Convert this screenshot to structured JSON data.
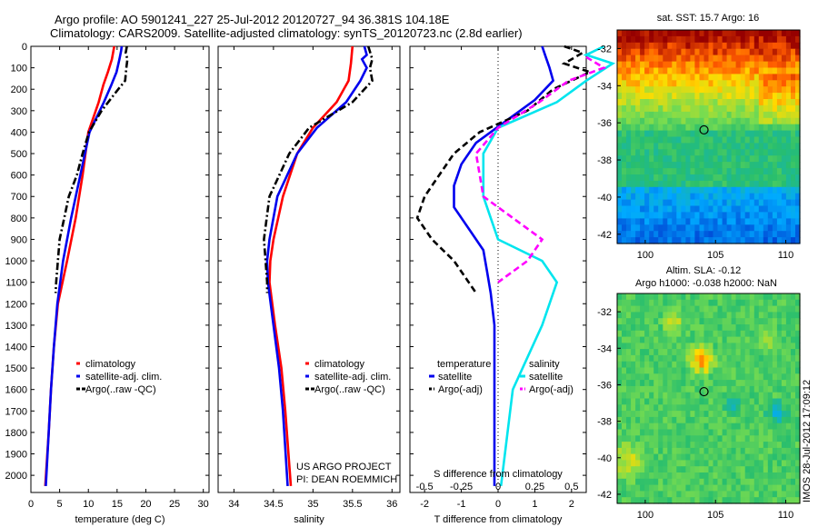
{
  "header": {
    "title_line1": "Argo profile: AO 5901241_227 25-Jul-2012 20120727_94 36.381S 104.18E",
    "title_line2": "Climatology: CARS2009. Satellite-adjusted climatology: synTS_20120723.nc (2.8d earlier)"
  },
  "colors": {
    "climatology": "#ff0000",
    "satellite": "#0000ee",
    "argo": "#000000",
    "salinity_satellite": "#00e5ee",
    "salinity_argo": "#ff00ff"
  },
  "project": {
    "line1": "US ARGO PROJECT",
    "line2": "PI: DEAN ROEMMICH"
  },
  "watermark": "IMOS 28-Jul-2012 17:09:12",
  "maps": {
    "sst_title": "sat. SST: 15.7 Argo: 16",
    "sla_title1": "Altim. SLA: -0.12",
    "sla_title2": "Argo h1000: -0.038 h2000: NaN"
  },
  "chart_data": [
    {
      "type": "line",
      "id": "temperature",
      "xlabel": "temperature (deg C)",
      "ylabel": "",
      "xlim": [
        0,
        31
      ],
      "ylim": [
        2080,
        0
      ],
      "xticks": [
        0,
        5,
        10,
        15,
        20,
        25,
        30
      ],
      "yticks": [
        0,
        100,
        200,
        300,
        400,
        500,
        600,
        700,
        800,
        900,
        1000,
        1100,
        1200,
        1300,
        1400,
        1500,
        1600,
        1700,
        1800,
        1900,
        2000
      ],
      "legend": [
        "climatology",
        "satellite-adj. clim.",
        "Argo(..raw -QC)"
      ],
      "legend_position": "lower-center",
      "series": [
        {
          "name": "climatology",
          "color": "#ff0000",
          "style": "solid",
          "depth": [
            0,
            60,
            120,
            180,
            260,
            400,
            600,
            800,
            1000,
            1200,
            1400,
            1600,
            1800,
            2050
          ],
          "value": [
            14.5,
            14.1,
            13.4,
            12.6,
            11.8,
            10.0,
            9.0,
            7.8,
            6.3,
            4.7,
            4.0,
            3.5,
            3.1,
            2.5
          ]
        },
        {
          "name": "satellite-adj. clim.",
          "color": "#0000ee",
          "style": "solid",
          "depth": [
            0,
            20,
            60,
            120,
            180,
            260,
            400,
            600,
            800,
            1000,
            1200,
            1400,
            1600,
            1800,
            2050
          ],
          "value": [
            15.8,
            15.7,
            15.4,
            14.9,
            14.0,
            12.7,
            10.2,
            8.6,
            7.0,
            5.6,
            4.6,
            4.0,
            3.5,
            3.1,
            2.6
          ]
        },
        {
          "name": "Argo(..raw -QC)",
          "color": "#000000",
          "style": "dashdot",
          "depth": [
            0,
            30,
            60,
            100,
            160,
            200,
            300,
            400,
            500,
            600,
            700,
            800,
            900,
            1000,
            1100,
            1150
          ],
          "value": [
            16.7,
            16.5,
            16.8,
            16.6,
            16.4,
            15.2,
            12.3,
            10.1,
            9.0,
            8.0,
            6.6,
            5.8,
            5.0,
            4.7,
            4.4,
            4.3
          ]
        }
      ]
    },
    {
      "type": "line",
      "id": "salinity",
      "xlabel": "salinity",
      "ylabel": "",
      "xlim": [
        33.8,
        36.1
      ],
      "ylim": [
        2080,
        0
      ],
      "xticks": [
        34,
        34.5,
        35,
        35.5,
        36
      ],
      "legend": [
        "climatology",
        "satellite-adj. clim.",
        "Argo(..raw -QC)"
      ],
      "legend_position": "lower-right",
      "series": [
        {
          "name": "climatology",
          "color": "#ff0000",
          "style": "solid",
          "depth": [
            0,
            80,
            160,
            260,
            380,
            500,
            700,
            900,
            1000,
            1100,
            1300,
            1500,
            1700,
            2050
          ],
          "value": [
            35.5,
            35.48,
            35.45,
            35.3,
            35.0,
            34.8,
            34.62,
            34.5,
            34.46,
            34.45,
            34.52,
            34.6,
            34.65,
            34.72
          ]
        },
        {
          "name": "satellite-adj. clim.",
          "color": "#0000ee",
          "style": "solid",
          "depth": [
            0,
            40,
            60,
            100,
            160,
            260,
            380,
            500,
            700,
            900,
            1000,
            1100,
            1300,
            1500,
            1700,
            2050
          ],
          "value": [
            35.65,
            35.68,
            35.62,
            35.68,
            35.6,
            35.42,
            35.05,
            34.8,
            34.55,
            34.45,
            34.42,
            34.43,
            34.5,
            34.57,
            34.62,
            34.68
          ]
        },
        {
          "name": "Argo(..raw -QC)",
          "color": "#000000",
          "style": "dashdot",
          "depth": [
            0,
            60,
            100,
            160,
            260,
            380,
            500,
            700,
            900,
            1000,
            1100,
            1150
          ],
          "value": [
            35.7,
            35.75,
            35.72,
            35.75,
            35.5,
            34.95,
            34.7,
            34.45,
            34.38,
            34.4,
            34.42,
            34.42
          ]
        }
      ]
    },
    {
      "type": "line",
      "id": "differences",
      "xlabel": "T difference from climatology",
      "xlabel_top": "S difference from climatology",
      "xlim": [
        -2.4,
        2.4
      ],
      "ylim": [
        2080,
        0
      ],
      "xticks": [
        -2,
        -1,
        0,
        1,
        2
      ],
      "xticks_s": [
        -0.5,
        -0.25,
        0,
        0.25,
        0.5
      ],
      "legend_groups": [
        "temperature",
        "salinity"
      ],
      "legend": [
        "satellite",
        "Argo(-adj)",
        "satellite",
        "Argo(-adj)"
      ],
      "legend_position": "lower-center",
      "zero_line": "dotted",
      "series": [
        {
          "name": "satellite",
          "group": "temperature",
          "color": "#0000ee",
          "style": "solid",
          "depth": [
            0,
            50,
            100,
            160,
            250,
            350,
            450,
            550,
            650,
            750,
            850,
            950,
            1050,
            1150,
            1300,
            1500,
            1800,
            2050
          ],
          "value": [
            1.2,
            1.3,
            1.4,
            1.5,
            1.0,
            0.2,
            -0.6,
            -1.0,
            -1.2,
            -1.2,
            -0.8,
            -0.4,
            -0.3,
            -0.2,
            -0.1,
            -0.1,
            -0.1,
            -0.1
          ]
        },
        {
          "name": "Argo(-adj)",
          "group": "temperature",
          "color": "#000000",
          "style": "dashed",
          "depth": [
            0,
            30,
            80,
            120,
            200,
            300,
            400,
            500,
            600,
            700,
            800,
            900,
            1000,
            1100,
            1150
          ],
          "value": [
            1.8,
            2.3,
            1.8,
            2.5,
            1.5,
            0.8,
            -0.5,
            -1.2,
            -1.6,
            -2.0,
            -2.2,
            -1.8,
            -1.2,
            -0.8,
            -0.6
          ]
        },
        {
          "name": "satellite",
          "group": "salinity",
          "color": "#00e5ee",
          "style": "solid",
          "depth": [
            0,
            40,
            80,
            160,
            260,
            380,
            500,
            700,
            900,
            1000,
            1100,
            1300,
            1600,
            2050
          ],
          "value": [
            0.72,
            0.6,
            0.78,
            0.6,
            0.4,
            0.0,
            -0.1,
            -0.1,
            0.0,
            0.3,
            0.4,
            0.3,
            0.1,
            0.02
          ]
        },
        {
          "name": "Argo(-adj)",
          "group": "salinity",
          "color": "#ff00ff",
          "style": "dashed",
          "depth": [
            50,
            100,
            160,
            260,
            380,
            500,
            700,
            900,
            1000,
            1100
          ],
          "value": [
            0.6,
            0.72,
            0.48,
            0.28,
            0.0,
            -0.15,
            -0.1,
            0.3,
            0.2,
            0.0
          ]
        }
      ]
    },
    {
      "type": "heatmap",
      "id": "sst_map",
      "title": "sat. SST: 15.7 Argo: 16",
      "xlim": [
        98,
        111
      ],
      "ylim": [
        -42.5,
        -31
      ],
      "xticks": [
        100,
        105,
        110
      ],
      "yticks": [
        -32,
        -34,
        -36,
        -38,
        -40,
        -42
      ],
      "argo_position": [
        104.18,
        -36.38
      ]
    },
    {
      "type": "heatmap",
      "id": "sla_map",
      "title": "Altim. SLA: -0.12",
      "subtitle": "Argo h1000: -0.038 h2000: NaN",
      "xlim": [
        98,
        111
      ],
      "ylim": [
        -42.5,
        -31
      ],
      "xticks": [
        100,
        105,
        110
      ],
      "yticks": [
        -32,
        -34,
        -36,
        -38,
        -40,
        -42
      ],
      "argo_position": [
        104.18,
        -36.38
      ]
    }
  ]
}
